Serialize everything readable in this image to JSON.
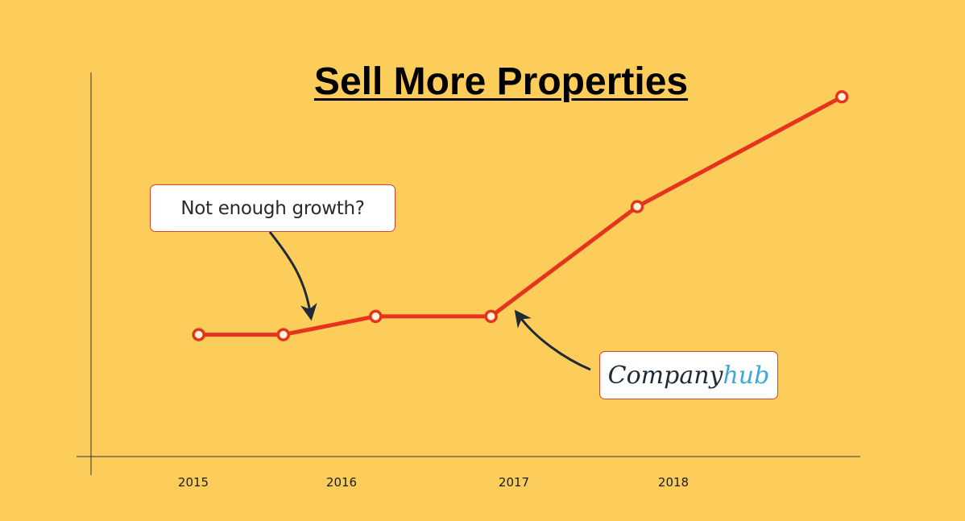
{
  "title": "Sell More Properties",
  "colors": {
    "background": "#FDCD5B",
    "line": "#E5331E",
    "axis": "#333333",
    "arrow": "#1f2a36",
    "brand_primary": "#1d2a3a",
    "brand_accent": "#3FA6D8"
  },
  "callouts": {
    "growth": "Not enough growth?",
    "brand_part1": "Company",
    "brand_part2": "hub"
  },
  "chart_data": {
    "type": "line",
    "title": "Sell More Properties",
    "xlabel": "",
    "ylabel": "",
    "categories": [
      "2015",
      "2016",
      "2017",
      "2018"
    ],
    "grid": false,
    "legend": "none",
    "series": [
      {
        "color": "#E5331E",
        "points": [
          {
            "x": 2014.8,
            "y": 20
          },
          {
            "x": 2015.35,
            "y": 20
          },
          {
            "x": 2015.95,
            "y": 23
          },
          {
            "x": 2016.7,
            "y": 23
          },
          {
            "x": 2017.65,
            "y": 41
          },
          {
            "x": 2018.98,
            "y": 59
          }
        ]
      }
    ],
    "xlim": [
      2014.1,
      2019.1
    ],
    "ylim": [
      0,
      63
    ]
  }
}
